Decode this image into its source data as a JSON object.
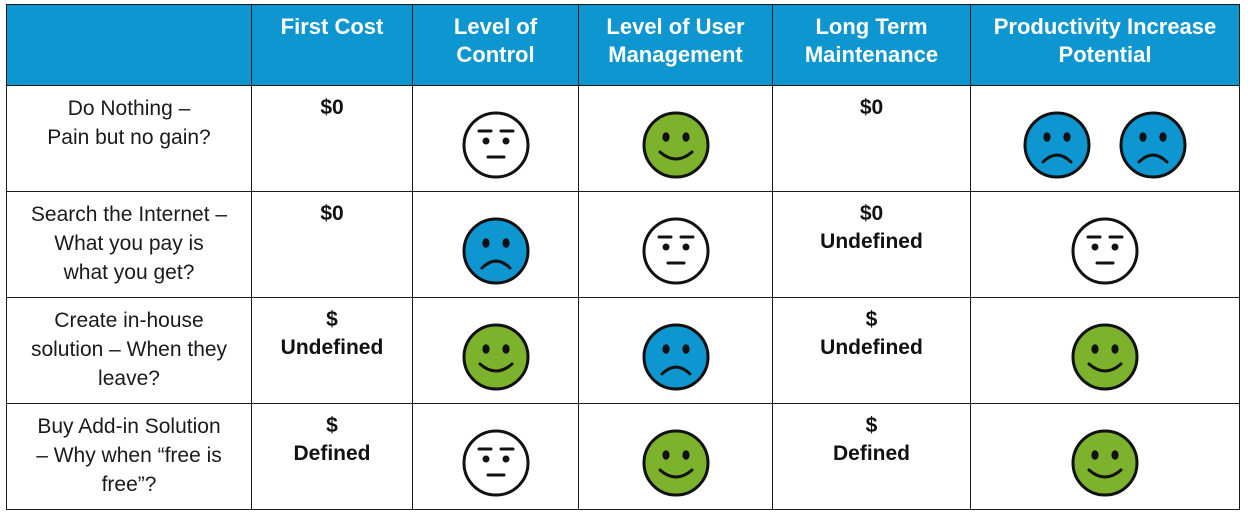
{
  "colors": {
    "header_bg": "#0d96d0",
    "happy_face": "#7db32c",
    "sad_face": "#0d96d0",
    "neutral_face": "#ffffff"
  },
  "columns": [
    "",
    "First Cost",
    "Level of\nControl",
    "Level of User\nManagement",
    "Long Term\nMaintenance",
    "Productivity Increase\nPotential"
  ],
  "rows": [
    {
      "label": "Do Nothing –\nPain but no gain?",
      "first_cost": [
        "$0"
      ],
      "control": [
        "neutral-face"
      ],
      "user_management": [
        "happy-face"
      ],
      "maintenance": [
        "$0"
      ],
      "productivity": [
        "sad-face",
        "sad-face"
      ]
    },
    {
      "label": "Search the Internet –\nWhat you pay is\nwhat you get?",
      "first_cost": [
        "$0"
      ],
      "control": [
        "sad-face"
      ],
      "user_management": [
        "neutral-face"
      ],
      "maintenance": [
        "$0",
        "Undefined"
      ],
      "productivity": [
        "neutral-face"
      ]
    },
    {
      "label": "Create in-house\nsolution – When they\nleave?",
      "first_cost": [
        "$",
        "Undefined"
      ],
      "control": [
        "happy-face"
      ],
      "user_management": [
        "sad-face"
      ],
      "maintenance": [
        "$",
        "Undefined"
      ],
      "productivity": [
        "happy-face"
      ]
    },
    {
      "label": "Buy Add-in Solution\n– Why when “free is\nfree”?",
      "first_cost": [
        "$",
        "Defined"
      ],
      "control": [
        "neutral-face"
      ],
      "user_management": [
        "happy-face"
      ],
      "maintenance": [
        "$",
        "Defined"
      ],
      "productivity": [
        "happy-face"
      ]
    }
  ]
}
